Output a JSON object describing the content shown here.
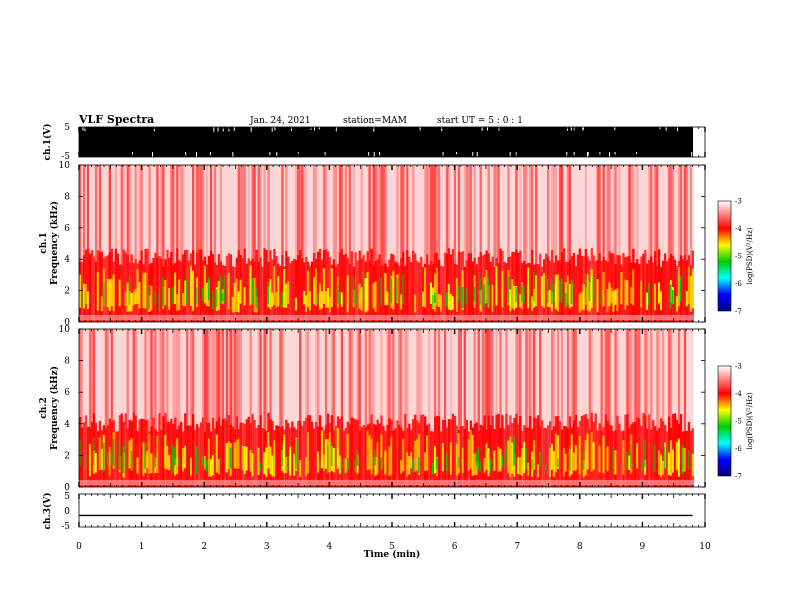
{
  "header": {
    "title": "VLF Spectra",
    "date": "Jan. 24, 2021",
    "station": "station=MAM",
    "start": "start UT =  5 : 0 : 1"
  },
  "colors": {
    "spec_high": "#ff0000",
    "spec_mid": "#ffff00",
    "spec_low": "#00cc00",
    "trace": "#000000"
  },
  "chart_data": [
    {
      "id": "ch1-voltage",
      "type": "line",
      "ylabel": "ch.1(V)",
      "ylim": [
        -5,
        5
      ],
      "yticks": [
        "5",
        "-5"
      ],
      "note": "broadband waveform saturating panel"
    },
    {
      "id": "ch1-spectrogram",
      "type": "heatmap",
      "ylabel_line1": "ch.1",
      "ylabel_line2": "Frequency (kHz)",
      "ylim": [
        0,
        10
      ],
      "yticks": [
        "0",
        "2",
        "4",
        "6",
        "8",
        "10"
      ],
      "colorbar": {
        "label": "log(PSD)(V²/Hz)",
        "range": [
          -7,
          -3
        ],
        "ticks": [
          "-3",
          "-4",
          "-5",
          "-6",
          "-7"
        ]
      },
      "intense_band_khz": [
        0.5,
        3.5
      ]
    },
    {
      "id": "ch2-spectrogram",
      "type": "heatmap",
      "ylabel_line1": "ch.2",
      "ylabel_line2": "Frequency (kHz)",
      "ylim": [
        0,
        10
      ],
      "yticks": [
        "0",
        "2",
        "4",
        "6",
        "8",
        "10"
      ],
      "colorbar": {
        "label": "log(PSD)(V²/Hz)",
        "range": [
          -7,
          -3
        ],
        "ticks": [
          "-3",
          "-4",
          "-5",
          "-6",
          "-7"
        ]
      },
      "intense_band_khz": [
        0.5,
        3.5
      ]
    },
    {
      "id": "ch3-voltage",
      "type": "line",
      "ylabel": "ch.3(V)",
      "ylim": [
        -5,
        5
      ],
      "yticks": [
        "5",
        "0",
        "-5"
      ],
      "x": [
        0,
        9.8
      ],
      "y": [
        -1.5,
        -1.5
      ]
    }
  ],
  "xaxis": {
    "label": "Time (min)",
    "xlim": [
      0,
      10
    ],
    "ticks": [
      "0",
      "1",
      "2",
      "3",
      "4",
      "5",
      "6",
      "7",
      "8",
      "9",
      "10"
    ],
    "data_end": 9.82
  }
}
